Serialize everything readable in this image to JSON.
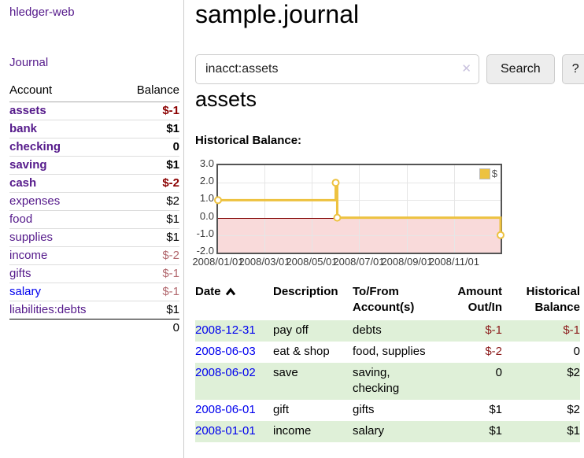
{
  "app": {
    "title": "hledger-web",
    "journal_link": "Journal"
  },
  "sidebar": {
    "columns": {
      "account": "Account",
      "balance": "Balance"
    },
    "accounts": [
      {
        "name": "assets",
        "balance": "$-1",
        "level": 1,
        "emphasized": true,
        "negative": true
      },
      {
        "name": "bank",
        "balance": "$1",
        "level": 2,
        "emphasized": true,
        "negative": false
      },
      {
        "name": "checking",
        "balance": "0",
        "level": 3,
        "emphasized": true,
        "negative": false
      },
      {
        "name": "saving",
        "balance": "$1",
        "level": 3,
        "emphasized": true,
        "negative": false
      },
      {
        "name": "cash",
        "balance": "$-2",
        "level": 2,
        "emphasized": true,
        "negative": true
      },
      {
        "name": "expenses",
        "balance": "$2",
        "level": 1,
        "emphasized": false,
        "negative": false
      },
      {
        "name": "food",
        "balance": "$1",
        "level": 2,
        "emphasized": false,
        "negative": false
      },
      {
        "name": "supplies",
        "balance": "$1",
        "level": 2,
        "emphasized": false,
        "negative": false
      },
      {
        "name": "income",
        "balance": "$-2",
        "level": 1,
        "emphasized": false,
        "negative": true
      },
      {
        "name": "gifts",
        "balance": "$-1",
        "level": 2,
        "emphasized": false,
        "negative": true
      },
      {
        "name": "salary",
        "balance": "$-1",
        "level": 2,
        "emphasized": false,
        "negative": true
      },
      {
        "name": "liabilities:debts",
        "balance": "$1",
        "level": 1,
        "emphasized": false,
        "negative": false
      }
    ],
    "total": "0"
  },
  "main": {
    "title": "sample.journal",
    "search": {
      "value": "inacct:assets",
      "clear_icon": "✕",
      "search_button": "Search",
      "help_button": "?"
    },
    "account_heading": "assets",
    "chart_title": "Historical Balance:"
  },
  "chart_data": {
    "type": "line",
    "title": "Historical Balance of assets",
    "series": [
      {
        "name": "$",
        "color": "#edc240",
        "steps": true,
        "points": [
          {
            "date": "2008-01-01",
            "x": 0,
            "y": 1
          },
          {
            "date": "2008-06-01",
            "x": 152,
            "y": 2
          },
          {
            "date": "2008-06-03",
            "x": 154,
            "y": 0
          },
          {
            "date": "2008-12-31",
            "x": 365,
            "y": -1
          }
        ]
      }
    ],
    "xlim": [
      0,
      365
    ],
    "ylim": [
      -2,
      3
    ],
    "yticks": [
      {
        "label": "3.0",
        "value": 3
      },
      {
        "label": "2.0",
        "value": 2
      },
      {
        "label": "1.0",
        "value": 1
      },
      {
        "label": "0.0",
        "value": 0
      },
      {
        "label": "-1.0",
        "value": -1
      },
      {
        "label": "-2.0",
        "value": -2
      }
    ],
    "xticks": [
      {
        "label": "2008/01/01",
        "x": 0
      },
      {
        "label": "2008/03/01",
        "x": 60
      },
      {
        "label": "2008/05/01",
        "x": 121
      },
      {
        "label": "2008/07/01",
        "x": 182
      },
      {
        "label": "2008/09/01",
        "x": 244
      },
      {
        "label": "2008/11/01",
        "x": 305
      }
    ],
    "legend_position": "top-right",
    "grid": true,
    "negative_region_fill": "#f9dada",
    "zero_line_color": "#800000"
  },
  "register": {
    "columns": [
      "Date",
      "Description",
      "To/From Account(s)",
      "Amount Out/In",
      "Historical Balance"
    ],
    "sort": {
      "column": "Date",
      "direction": "ascending"
    },
    "rows": [
      {
        "date": "2008-12-31",
        "description": "pay off",
        "accounts": "debts",
        "amount": "$-1",
        "balance": "$-1"
      },
      {
        "date": "2008-06-03",
        "description": "eat & shop",
        "accounts": "food, supplies",
        "amount": "$-2",
        "balance": "0"
      },
      {
        "date": "2008-06-02",
        "description": "save",
        "accounts": "saving, checking",
        "amount": "0",
        "balance": "$2"
      },
      {
        "date": "2008-06-01",
        "description": "gift",
        "accounts": "gifts",
        "amount": "$1",
        "balance": "$2"
      },
      {
        "date": "2008-01-01",
        "description": "income",
        "accounts": "salary",
        "amount": "$1",
        "balance": "$1"
      }
    ]
  },
  "colors": {
    "link_purple": "#551a8b",
    "link_blue": "#0000ee",
    "negative_strong": "#8b0000",
    "negative_muted": "#b2686e",
    "row_green": "#dff0d8",
    "chart_line_gold": "#edc240",
    "chart_negative_fill": "#f9dada",
    "chart_zero_line": "#800000",
    "chart_border": "#545454"
  }
}
